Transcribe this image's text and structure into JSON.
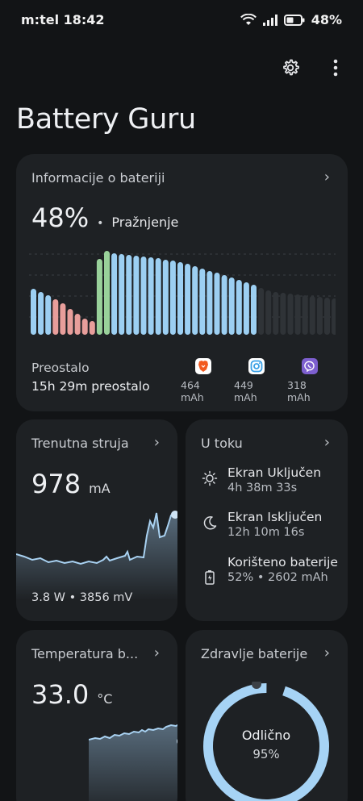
{
  "status": {
    "carrier_time": "m:tel 18:42",
    "battery": "48%"
  },
  "header": {
    "title": "Battery Guru"
  },
  "battery_info": {
    "title": "Informacije o bateriji",
    "percent": "48%",
    "state_dot": "•",
    "state": "Pražnjenje",
    "remaining_label": "Preostalo",
    "remaining_value": "15h 29m preostalo",
    "apps": [
      {
        "icon": "brave-icon",
        "color": "#f25a1f",
        "mah": "464 mAh"
      },
      {
        "icon": "instagram-icon",
        "color": "#3aa0e6",
        "mah": "449 mAh"
      },
      {
        "icon": "viber-icon",
        "color": "#7d5fcf",
        "mah": "318 mAh"
      }
    ]
  },
  "current": {
    "title": "Trenutna struja",
    "value": "978",
    "unit": "mA",
    "footer": "3.8 W • 3856 mV"
  },
  "usage": {
    "title": "U toku",
    "items": [
      {
        "icon": "sun-icon",
        "label": "Ekran Uključen",
        "value": "4h 38m 33s"
      },
      {
        "icon": "moon-icon",
        "label": "Ekran Isključen",
        "value": "12h 10m 16s"
      },
      {
        "icon": "battery-icon",
        "label": "Korišteno baterije",
        "value": "52% • 2602 mAh"
      }
    ]
  },
  "temperature": {
    "title": "Temperatura b...",
    "value": "33.0",
    "unit": "°C"
  },
  "health": {
    "title": "Zdravlje baterije",
    "status": "Odlično",
    "percent": "95%"
  }
}
